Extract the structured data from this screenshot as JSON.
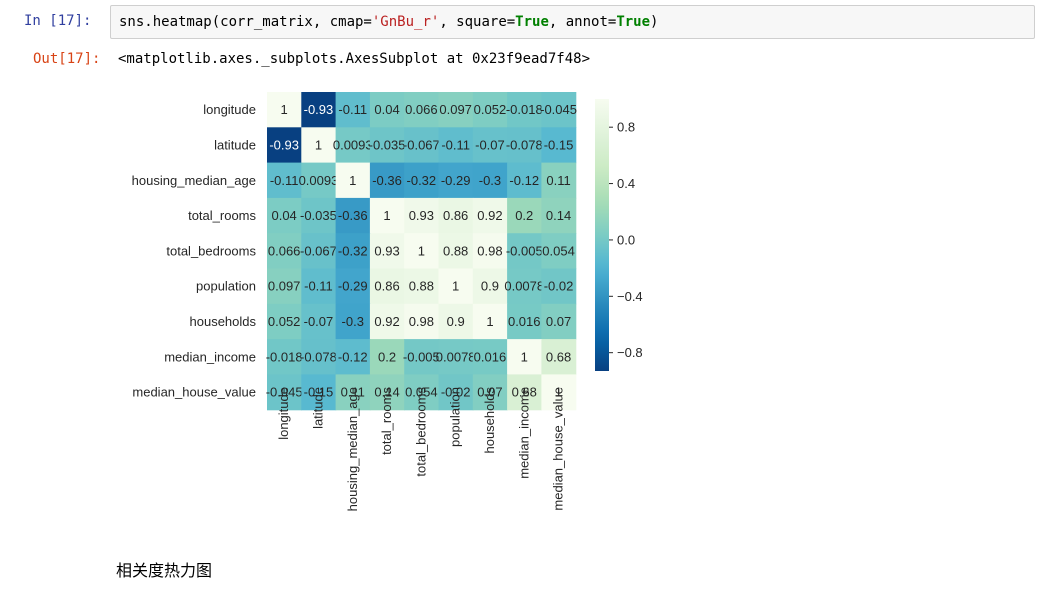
{
  "cell": {
    "in_prompt": "In  [17]:",
    "out_prompt": "Out[17]:",
    "code": {
      "fn": "sns.heatmap(corr_matrix, cmap=",
      "cmap": "'GnBu_r'",
      "sep1": ", square=",
      "square": "True",
      "sep2": ", annot=",
      "annot": "True",
      "end": ")"
    },
    "output_text": "<matplotlib.axes._subplots.AxesSubplot at 0x23f9ead7f48>"
  },
  "caption": "相关度热力图",
  "chart_data": {
    "type": "heatmap",
    "cmap": "GnBu_r",
    "rows": [
      "longitude",
      "latitude",
      "housing_median_age",
      "total_rooms",
      "total_bedrooms",
      "population",
      "households",
      "median_income",
      "median_house_value"
    ],
    "cols": [
      "longitude",
      "latitude",
      "housing_median_age",
      "total_rooms",
      "total_bedrooms",
      "population",
      "households",
      "median_income",
      "median_house_value"
    ],
    "values": [
      [
        1,
        -0.93,
        -0.11,
        0.04,
        0.066,
        0.097,
        0.052,
        -0.018,
        -0.045
      ],
      [
        -0.93,
        1,
        0.0093,
        -0.035,
        -0.067,
        -0.11,
        -0.07,
        -0.078,
        -0.15
      ],
      [
        -0.11,
        0.0093,
        1,
        -0.36,
        -0.32,
        -0.29,
        -0.3,
        -0.12,
        0.11
      ],
      [
        0.04,
        -0.035,
        -0.36,
        1,
        0.93,
        0.86,
        0.92,
        0.2,
        0.14
      ],
      [
        0.066,
        -0.067,
        -0.32,
        0.93,
        1,
        0.88,
        0.98,
        -0.005,
        0.054
      ],
      [
        0.097,
        -0.11,
        -0.29,
        0.86,
        0.88,
        1,
        0.9,
        0.0078,
        -0.02
      ],
      [
        0.052,
        -0.07,
        -0.3,
        0.92,
        0.98,
        0.9,
        1,
        0.016,
        0.07
      ],
      [
        -0.018,
        -0.078,
        -0.12,
        0.2,
        -0.005,
        0.0078,
        0.016,
        1,
        0.68
      ],
      [
        -0.045,
        -0.15,
        0.11,
        0.14,
        0.054,
        -0.02,
        0.07,
        0.68,
        1
      ]
    ],
    "annotations": [
      [
        "1",
        "-0.93",
        "-0.11",
        "0.04",
        "0.066",
        "0.097",
        "0.052",
        "-0.018",
        "-0.045"
      ],
      [
        "-0.93",
        "1",
        "0.0093",
        "-0.035",
        "-0.067",
        "-0.11",
        "-0.07",
        "-0.078",
        "-0.15"
      ],
      [
        "-0.11",
        "0.0093",
        "1",
        "-0.36",
        "-0.32",
        "-0.29",
        "-0.3",
        "-0.12",
        "0.11"
      ],
      [
        "0.04",
        "-0.035",
        "-0.36",
        "1",
        "0.93",
        "0.86",
        "0.92",
        "0.2",
        "0.14"
      ],
      [
        "0.066",
        "-0.067",
        "-0.32",
        "0.93",
        "1",
        "0.88",
        "0.98",
        "-0.005",
        "0.054"
      ],
      [
        "0.097",
        "-0.11",
        "-0.29",
        "0.86",
        "0.88",
        "1",
        "0.9",
        "0.0078",
        "-0.02"
      ],
      [
        "0.052",
        "-0.07",
        "-0.3",
        "0.92",
        "0.98",
        "0.9",
        "1",
        "0.016",
        "0.07"
      ],
      [
        "-0.018",
        "-0.078",
        "-0.12",
        "0.2",
        "-0.005",
        "0.0078",
        "0.016",
        "1",
        "0.68"
      ],
      [
        "-0.045",
        "-0.15",
        "0.11",
        "0.14",
        "0.054",
        "-0.02",
        "0.07",
        "0.68",
        "1"
      ]
    ],
    "colorbar": {
      "vmin": -0.93,
      "vmax": 1,
      "ticks": [
        0.8,
        0.4,
        0.0,
        -0.4,
        -0.8
      ],
      "tick_labels": [
        "0.8",
        "0.4",
        "0.0",
        "−0.4",
        "−0.8"
      ]
    },
    "colors": {
      "low": "#084081",
      "mid": "#4eb3d3",
      "high": "#f7fcf0"
    }
  }
}
